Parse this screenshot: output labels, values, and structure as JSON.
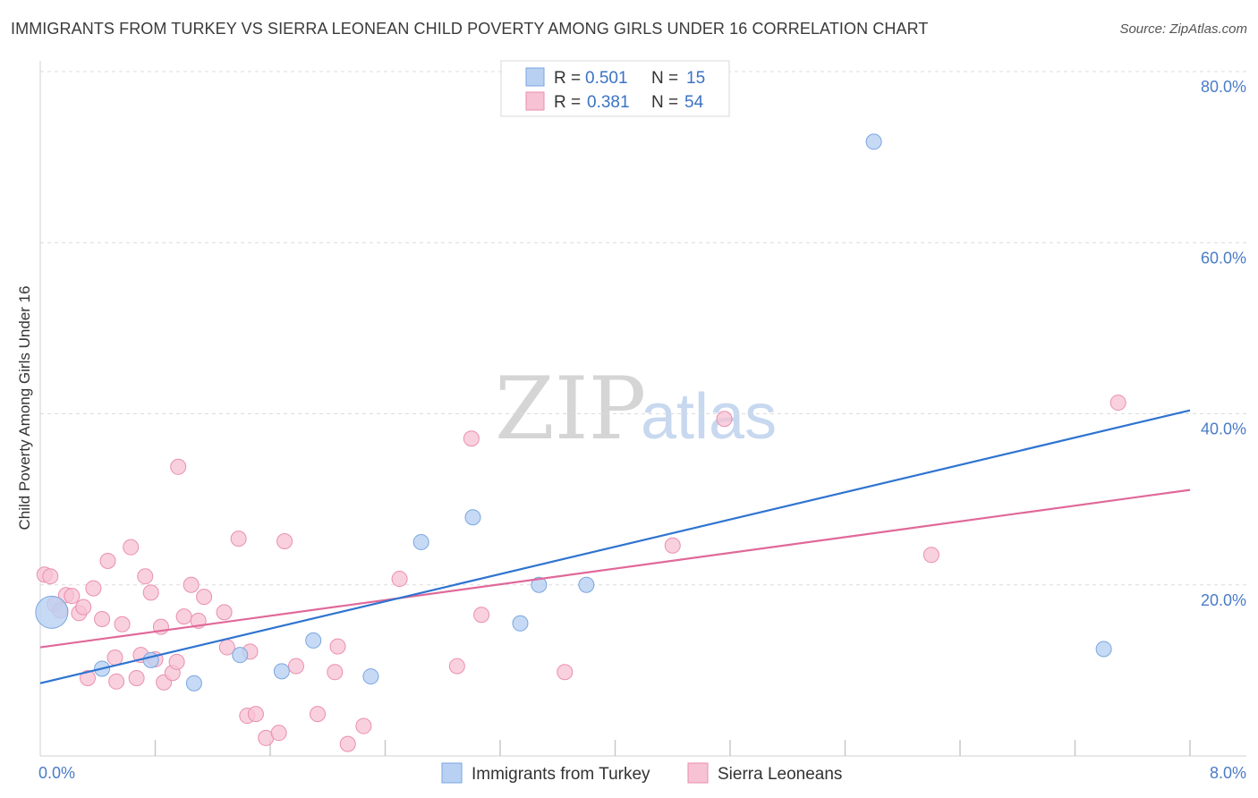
{
  "title": "IMMIGRANTS FROM TURKEY VS SIERRA LEONEAN CHILD POVERTY AMONG GIRLS UNDER 16 CORRELATION CHART",
  "source": "Source: ZipAtlas.com",
  "watermark": {
    "zip": "ZIP",
    "atlas": "atlas"
  },
  "colors": {
    "blue_fill": "#b8d1f3",
    "blue_stroke": "#7aa5e0",
    "blue_line": "#2f74d0",
    "pink_fill": "#f7c2d3",
    "pink_stroke": "#ea8fae",
    "pink_line": "#e0689a",
    "tick_text": "#4a7cc7",
    "grid": "#dcdcdc"
  },
  "legend": {
    "rows": [
      {
        "r_label": "R =",
        "r_value": "0.501",
        "n_label": "N =",
        "n_value": "15"
      },
      {
        "r_label": "R =",
        "r_value": "0.381",
        "n_label": "N =",
        "n_value": "54"
      }
    ]
  },
  "chart_data": {
    "type": "scatter",
    "title": "IMMIGRANTS FROM TURKEY VS SIERRA LEONEAN CHILD POVERTY AMONG GIRLS UNDER 16 CORRELATION CHART",
    "xlabel": "",
    "ylabel": "Child Poverty Among Girls Under 16",
    "xlim": [
      0,
      8
    ],
    "ylim": [
      0,
      80
    ],
    "x_tick_labels": [
      {
        "value": 0,
        "label": "0.0%"
      },
      {
        "value": 8,
        "label": "8.0%"
      }
    ],
    "y_tick_labels": [
      {
        "value": 20,
        "label": "20.0%"
      },
      {
        "value": 40,
        "label": "40.0%"
      },
      {
        "value": 60,
        "label": "60.0%"
      },
      {
        "value": 80,
        "label": "80.0%"
      }
    ],
    "grid": true,
    "legend_position": "top-center",
    "series": [
      {
        "name": "Immigrants from Turkey",
        "color": "#b8d1f3",
        "points": [
          [
            0.08,
            16.8
          ],
          [
            0.43,
            10.2
          ],
          [
            0.77,
            11.2
          ],
          [
            1.07,
            8.5
          ],
          [
            1.39,
            11.8
          ],
          [
            1.68,
            9.9
          ],
          [
            1.9,
            13.5
          ],
          [
            2.3,
            9.3
          ],
          [
            2.65,
            25.0
          ],
          [
            3.01,
            27.9
          ],
          [
            3.34,
            15.5
          ],
          [
            3.47,
            20.0
          ],
          [
            3.8,
            20.0
          ],
          [
            5.8,
            71.8
          ],
          [
            7.4,
            12.5
          ]
        ],
        "trend": {
          "x": [
            0,
            8
          ],
          "y": [
            8.5,
            40.4
          ]
        }
      },
      {
        "name": "Sierra Leoneans",
        "color": "#f7c2d3",
        "points": [
          [
            0.03,
            21.2
          ],
          [
            0.07,
            21.0
          ],
          [
            0.1,
            17.7
          ],
          [
            0.14,
            17.0
          ],
          [
            0.18,
            18.8
          ],
          [
            0.22,
            18.7
          ],
          [
            0.27,
            16.7
          ],
          [
            0.3,
            17.4
          ],
          [
            0.33,
            9.1
          ],
          [
            0.37,
            19.6
          ],
          [
            0.43,
            16.0
          ],
          [
            0.47,
            22.8
          ],
          [
            0.52,
            11.5
          ],
          [
            0.53,
            8.7
          ],
          [
            0.57,
            15.4
          ],
          [
            0.63,
            24.4
          ],
          [
            0.67,
            9.1
          ],
          [
            0.7,
            11.8
          ],
          [
            0.73,
            21.0
          ],
          [
            0.77,
            19.1
          ],
          [
            0.8,
            11.3
          ],
          [
            0.84,
            15.1
          ],
          [
            0.86,
            8.6
          ],
          [
            0.92,
            9.7
          ],
          [
            0.96,
            33.8
          ],
          [
            1.0,
            16.3
          ],
          [
            1.05,
            20.0
          ],
          [
            1.1,
            15.8
          ],
          [
            1.14,
            18.6
          ],
          [
            1.28,
            16.8
          ],
          [
            1.3,
            12.7
          ],
          [
            1.38,
            25.4
          ],
          [
            1.44,
            4.7
          ],
          [
            1.46,
            12.2
          ],
          [
            1.5,
            4.9
          ],
          [
            1.57,
            2.1
          ],
          [
            1.66,
            2.7
          ],
          [
            1.7,
            25.1
          ],
          [
            1.78,
            10.5
          ],
          [
            1.93,
            4.9
          ],
          [
            2.05,
            9.8
          ],
          [
            2.07,
            12.8
          ],
          [
            2.14,
            1.4
          ],
          [
            2.25,
            3.5
          ],
          [
            2.5,
            20.7
          ],
          [
            2.9,
            10.5
          ],
          [
            3.0,
            37.1
          ],
          [
            3.07,
            16.5
          ],
          [
            3.65,
            9.8
          ],
          [
            4.4,
            24.6
          ],
          [
            4.76,
            39.4
          ],
          [
            6.2,
            23.5
          ],
          [
            7.5,
            41.3
          ],
          [
            0.95,
            11.0
          ]
        ],
        "trend": {
          "x": [
            0,
            8
          ],
          "y": [
            12.7,
            31.1
          ]
        }
      }
    ]
  }
}
